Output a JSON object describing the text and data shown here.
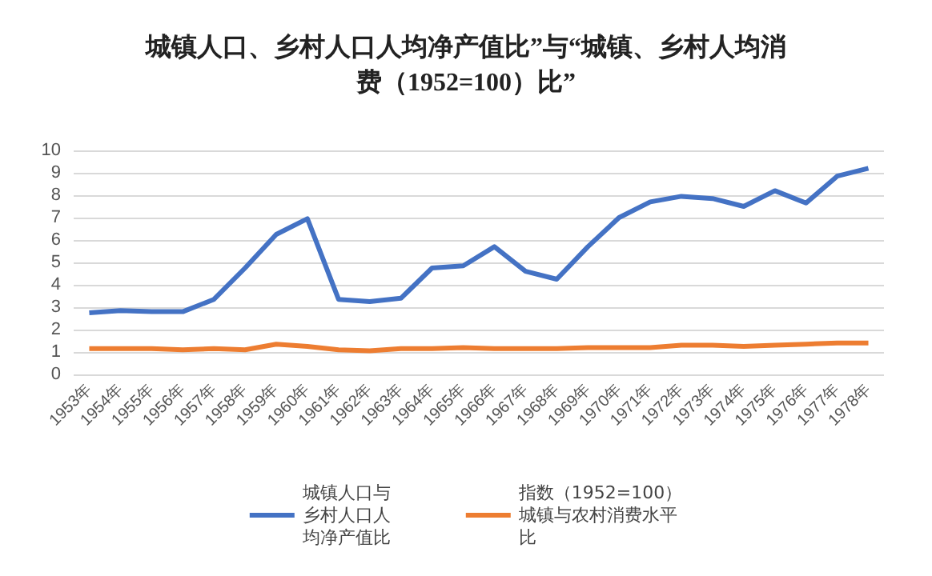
{
  "chart_data": {
    "type": "line",
    "title": "城镇人口、乡村人口人均净产值比”与“城镇、乡村人均消费（1952=100）比”",
    "categories": [
      "1953年",
      "1954年",
      "1955年",
      "1956年",
      "1957年",
      "1958年",
      "1959年",
      "1960年",
      "1961年",
      "1962年",
      "1963年",
      "1964年",
      "1965年",
      "1966年",
      "1967年",
      "1968年",
      "1969年",
      "1970年",
      "1971年",
      "1972年",
      "1973年",
      "1974年",
      "1975年",
      "1976年",
      "1977年",
      "1978年"
    ],
    "series": [
      {
        "name": "城镇人口与乡村人口人均净产值比",
        "color": "#4472c4",
        "values": [
          2.75,
          2.85,
          2.8,
          2.8,
          3.35,
          4.75,
          6.25,
          6.95,
          3.35,
          3.25,
          3.4,
          4.75,
          4.85,
          5.7,
          4.6,
          4.25,
          5.7,
          7.0,
          7.7,
          7.95,
          7.85,
          7.5,
          8.2,
          7.65,
          8.85,
          9.2
        ]
      },
      {
        "name": "指数（1952=100）城镇与农村消费水平比",
        "color": "#ed7d31",
        "values": [
          1.15,
          1.15,
          1.15,
          1.1,
          1.15,
          1.1,
          1.35,
          1.25,
          1.1,
          1.05,
          1.15,
          1.15,
          1.2,
          1.15,
          1.15,
          1.15,
          1.2,
          1.2,
          1.2,
          1.3,
          1.3,
          1.25,
          1.3,
          1.35,
          1.4,
          1.4
        ]
      }
    ],
    "ylim": [
      0,
      10
    ],
    "yticks": [
      0,
      1,
      2,
      3,
      4,
      5,
      6,
      7,
      8,
      9,
      10
    ],
    "grid": "y",
    "legend": "bottom",
    "marker": "none",
    "line_style": "solid"
  }
}
